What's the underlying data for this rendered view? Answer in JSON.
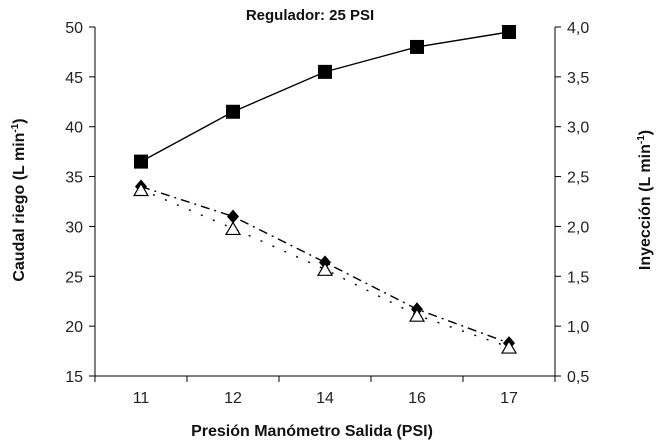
{
  "chart_data": {
    "type": "line",
    "title": "Regulador: 25 PSI",
    "xlabel": "Presión Manómetro Salida (PSI)",
    "ylabel_left": "Caudal riego (L min",
    "ylabel_left_sup": "-1",
    "ylabel_left_close": ")",
    "ylabel_right": "Inyección (L min",
    "ylabel_right_sup": "-1",
    "ylabel_right_close": ")",
    "categories": [
      "11",
      "12",
      "14",
      "16",
      "17"
    ],
    "left_axis": {
      "min": 15,
      "max": 50,
      "step": 5,
      "ticks": [
        "15",
        "20",
        "25",
        "30",
        "35",
        "40",
        "45",
        "50"
      ]
    },
    "right_axis": {
      "min": 0.5,
      "max": 4.0,
      "step": 0.5,
      "ticks": [
        "0,5",
        "1,0",
        "1,5",
        "2,0",
        "2,5",
        "3,0",
        "3,5",
        "4,0"
      ]
    },
    "grid": false,
    "series": [
      {
        "axis": "left",
        "marker": "square",
        "line": "solid",
        "color": "#000000",
        "values": [
          36.5,
          41.5,
          45.5,
          48.0,
          49.5
        ]
      },
      {
        "axis": "right",
        "marker": "diamond",
        "line": "dashed",
        "color": "#000000",
        "values": [
          2.4,
          2.1,
          1.64,
          1.17,
          0.83
        ]
      },
      {
        "axis": "right",
        "marker": "triangle-open",
        "line": "dotted",
        "color": "#000000",
        "values": [
          2.37,
          1.98,
          1.57,
          1.11,
          0.79
        ]
      }
    ]
  }
}
